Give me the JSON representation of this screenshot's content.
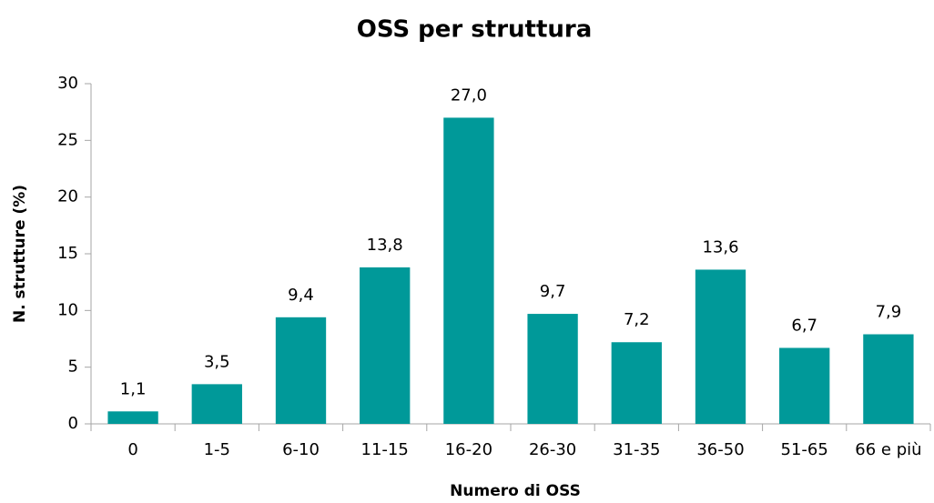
{
  "chart_data": {
    "type": "bar",
    "title": "OSS per struttura",
    "x_label": "Numero di OSS",
    "y_label": "N. strutture (%)",
    "categories": [
      "0",
      "1-5",
      "6-10",
      "11-15",
      "16-20",
      "26-30",
      "31-35",
      "36-50",
      "51-65",
      "66 e più"
    ],
    "values": [
      1.1,
      3.5,
      9.4,
      13.8,
      27.0,
      9.7,
      7.2,
      13.6,
      6.7,
      7.9
    ],
    "value_labels": [
      "1,1",
      "3,5",
      "9,4",
      "13,8",
      "27,0",
      "9,7",
      "7,2",
      "13,6",
      "6,7",
      "7,9"
    ],
    "color": "#009999",
    "ylim": [
      0,
      30
    ],
    "yticks": [
      0,
      5,
      10,
      15,
      20,
      25,
      30
    ],
    "grid": false
  }
}
